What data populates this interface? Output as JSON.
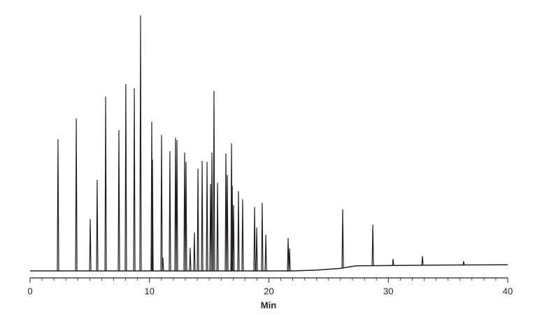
{
  "chart_data": {
    "type": "chromatogram",
    "xlabel": "Min",
    "xlim": [
      0,
      40
    ],
    "xticks": [
      0,
      10,
      20,
      30,
      40
    ],
    "xminorticks": [
      1,
      2,
      3,
      4,
      5,
      6,
      7,
      8,
      9,
      11,
      12,
      13,
      14,
      15,
      16,
      17,
      18,
      19,
      21,
      22,
      23,
      24,
      25,
      26,
      27,
      28,
      29,
      31,
      32,
      33,
      34,
      35,
      36,
      37,
      38,
      39
    ],
    "ylim": [
      0,
      100
    ],
    "color": "#231f20",
    "series": [
      {
        "color": "#231f20",
        "x": [
          0,
          22,
          24,
          26,
          27.3,
          30,
          35,
          40
        ],
        "values": [
          0,
          0,
          0.3,
          1.0,
          2.0,
          2.1,
          2.3,
          2.4
        ]
      }
    ],
    "peaks": {
      "x": [
        2.34,
        3.87,
        5.04,
        5.62,
        6.33,
        7.44,
        8.02,
        8.73,
        9.25,
        10.19,
        10.25,
        11.01,
        11.12,
        11.71,
        12.18,
        12.3,
        12.94,
        13.06,
        13.41,
        13.76,
        14.06,
        14.41,
        14.82,
        15.11,
        15.23,
        15.4,
        15.7,
        16.4,
        16.52,
        16.87,
        16.93,
        17.04,
        17.45,
        17.8,
        18.8,
        18.98,
        19.44,
        19.74,
        21.61,
        21.73,
        26.18,
        28.7,
        30.4,
        32.86,
        36.31
      ],
      "values": [
        51.5,
        59.7,
        20.3,
        35.6,
        68.2,
        55.1,
        73.2,
        71.5,
        100,
        58.4,
        43.6,
        53.2,
        5.2,
        46.8,
        52.1,
        51.2,
        46.3,
        42.7,
        9,
        15,
        40,
        43,
        42.7,
        34,
        46.3,
        70.4,
        34.5,
        46,
        37.5,
        49.9,
        33.4,
        25.8,
        31.2,
        28,
        25,
        17,
        26.6,
        14.2,
        12.9,
        8.8,
        24.1,
        18.1,
        4.7,
        5.8,
        3.8
      ]
    }
  }
}
